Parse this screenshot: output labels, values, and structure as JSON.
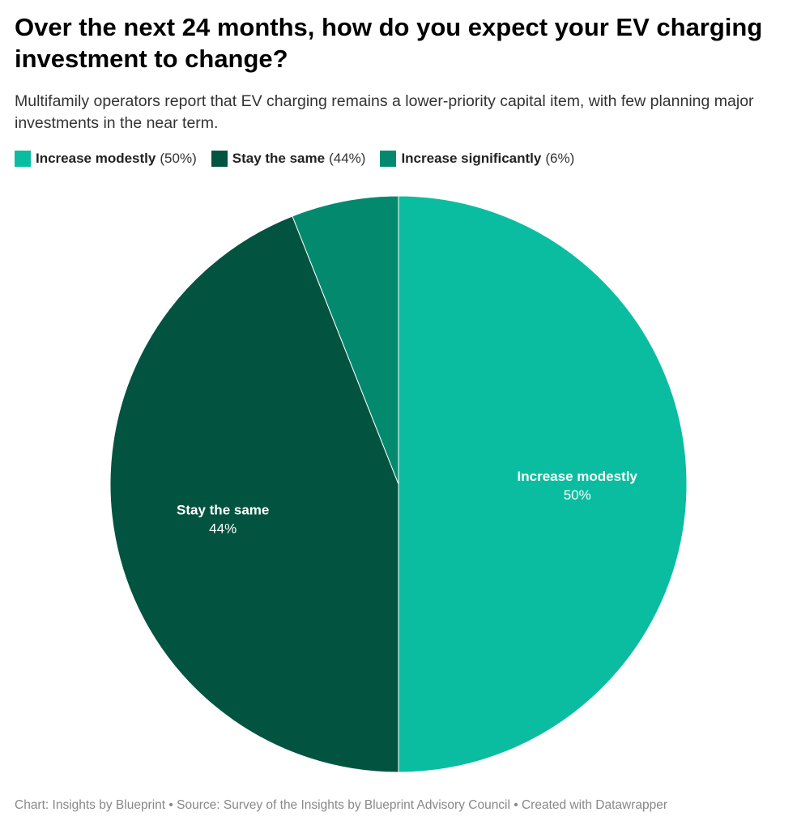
{
  "title": "Over the next 24 months, how do you expect your EV charging investment to change?",
  "subtitle": "Multifamily operators report that EV charging remains a lower-priority capital item, with few planning major investments in the near term.",
  "footer": "Chart: Insights by Blueprint • Source: Survey of the Insights by Blueprint Advisory Council • Created with Datawrapper",
  "chart_data": {
    "type": "pie",
    "categories": [
      "Increase modestly",
      "Stay the same",
      "Increase significantly"
    ],
    "values": [
      50,
      44,
      6
    ],
    "labels": [
      "50%",
      "44%",
      "6%"
    ],
    "colors": [
      "#0bbda0",
      "#025440",
      "#038a6e"
    ],
    "start": "12 o'clock, clockwise",
    "legend": "top-left",
    "slice_labels_shown": [
      "Increase modestly",
      "Stay the same"
    ]
  }
}
